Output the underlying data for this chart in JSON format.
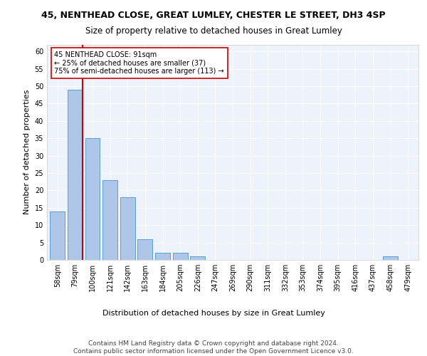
{
  "title1": "45, NENTHEAD CLOSE, GREAT LUMLEY, CHESTER LE STREET, DH3 4SP",
  "title2": "Size of property relative to detached houses in Great Lumley",
  "xlabel": "Distribution of detached houses by size in Great Lumley",
  "ylabel": "Number of detached properties",
  "categories": [
    "58sqm",
    "79sqm",
    "100sqm",
    "121sqm",
    "142sqm",
    "163sqm",
    "184sqm",
    "205sqm",
    "226sqm",
    "247sqm",
    "269sqm",
    "290sqm",
    "311sqm",
    "332sqm",
    "353sqm",
    "374sqm",
    "395sqm",
    "416sqm",
    "437sqm",
    "458sqm",
    "479sqm"
  ],
  "values": [
    14,
    49,
    35,
    23,
    18,
    6,
    2,
    2,
    1,
    0,
    0,
    0,
    0,
    0,
    0,
    0,
    0,
    0,
    0,
    1,
    0
  ],
  "bar_color": "#aec6e8",
  "bar_edge_color": "#5a9fd4",
  "vline_color": "#cc0000",
  "annotation_text": "45 NENTHEAD CLOSE: 91sqm\n← 25% of detached houses are smaller (37)\n75% of semi-detached houses are larger (113) →",
  "annotation_box_color": "#ffffff",
  "annotation_box_edge": "#cc0000",
  "ylim": [
    0,
    62
  ],
  "yticks": [
    0,
    5,
    10,
    15,
    20,
    25,
    30,
    35,
    40,
    45,
    50,
    55,
    60
  ],
  "footer": "Contains HM Land Registry data © Crown copyright and database right 2024.\nContains public sector information licensed under the Open Government Licence v3.0.",
  "background_color": "#eef2fa",
  "grid_color": "#ffffff",
  "title1_fontsize": 9,
  "title2_fontsize": 8.5,
  "xlabel_fontsize": 8,
  "ylabel_fontsize": 8,
  "tick_fontsize": 7,
  "footer_fontsize": 6.5
}
